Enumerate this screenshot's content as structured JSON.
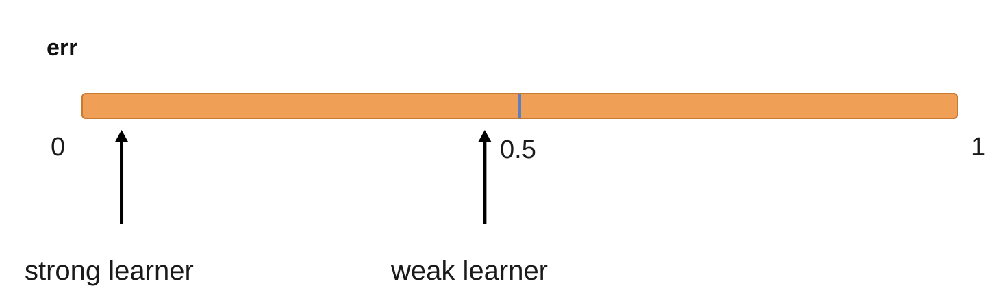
{
  "title": "err",
  "scale": {
    "min": 0,
    "max": 1,
    "bar_color": "#EFA056",
    "bar_border_color": "#C77A33",
    "midline_color": "#5B7FC0",
    "ticks": [
      {
        "value": 0,
        "label": "0"
      },
      {
        "value": 0.5,
        "label": "0.5"
      },
      {
        "value": 1,
        "label": "1"
      }
    ]
  },
  "markers": [
    {
      "value": 0.045,
      "label": "strong learner"
    },
    {
      "value": 0.46,
      "label": "weak learner"
    }
  ],
  "marker_color": "#000000"
}
